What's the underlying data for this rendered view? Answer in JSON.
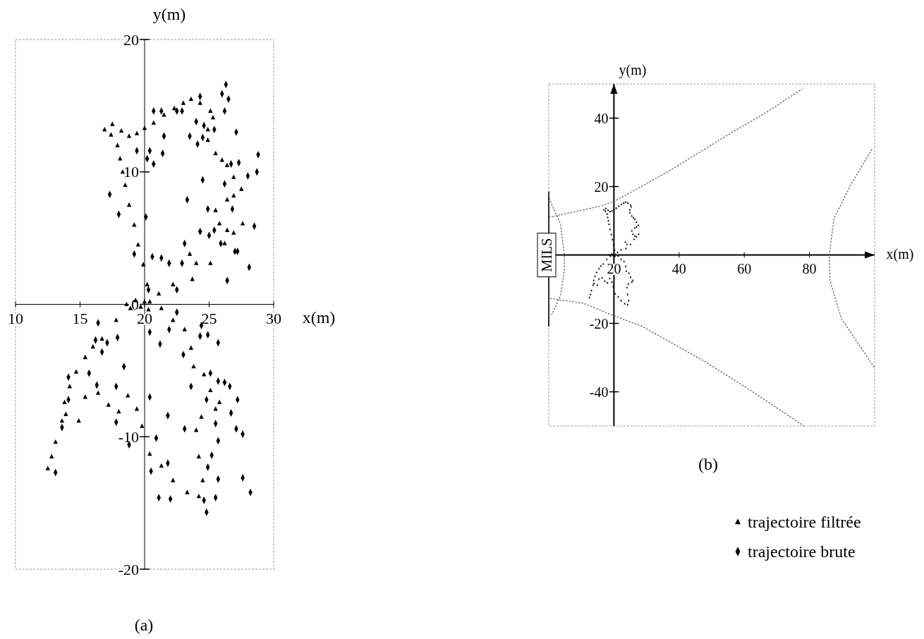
{
  "chart_data": [
    {
      "type": "scatter",
      "title": "(a)",
      "xlabel": "x(m)",
      "ylabel": "y(m)",
      "xlim": [
        10,
        30
      ],
      "ylim": [
        -20,
        20
      ],
      "xticks": [
        10,
        15,
        20,
        25,
        30
      ],
      "yticks": [
        20,
        10,
        0,
        -10,
        -20
      ],
      "grid": false,
      "legend": "right",
      "series": [
        {
          "name": "trajectoire filtrée",
          "color": "#000000",
          "marker": "triangle",
          "x": [
            20,
            20.2,
            19.9,
            19.5,
            19.2,
            18.8,
            18.5,
            18.3,
            18.1,
            17.9,
            17.4,
            16.9,
            17.5,
            18.2,
            18.8,
            19.4,
            20,
            20.7,
            21.5,
            22.3,
            23,
            23.6,
            24.3,
            25.1,
            25.3,
            24.9,
            24.9,
            25.5,
            26,
            26.4,
            26.9,
            27.5,
            26.9,
            26.4,
            25.5,
            25.8,
            26.4,
            26.9,
            27.6,
            26.2,
            25.1,
            24,
            23.5,
            23.7,
            22.2,
            21.1,
            20.4,
            18.6,
            18.9,
            19.3,
            19.7,
            20.3,
            17.8,
            16.7,
            16,
            15.4,
            14.7,
            14.2,
            13.8,
            13.6,
            13.1,
            12.8,
            12.5,
            13.9,
            14.9,
            15.4,
            16.4,
            17.2,
            18,
            18.7,
            19.4,
            19.8,
            20.4,
            21.3,
            22.2,
            23.3,
            24.2,
            24.5,
            24.2,
            24,
            24.4,
            25.5,
            25.8,
            25.1,
            24.6,
            23.8,
            23.6,
            23.1,
            22.2,
            21.3
          ],
          "values": [
            0.2,
            1.5,
            3,
            4.5,
            6,
            7.5,
            9,
            10,
            11,
            12,
            12.8,
            13.2,
            13.6,
            13.1,
            12.7,
            12.9,
            13.3,
            13.7,
            14.3,
            14.8,
            15.2,
            15.5,
            15.2,
            14.6,
            14.1,
            13.2,
            12.4,
            11.4,
            10.9,
            10.5,
            9.6,
            8.7,
            8.2,
            7.9,
            7.1,
            6.1,
            5.6,
            5.4,
            6.1,
            4.6,
            3.1,
            3.1,
            3.8,
            1.9,
            1.5,
            0.8,
            0.2,
            0,
            -0.3,
            0.3,
            -0.2,
            -0.4,
            -1.2,
            -2.6,
            -3.2,
            -4,
            -5.1,
            -6.2,
            -7.4,
            -8.8,
            -10.4,
            -11.5,
            -12.4,
            -8.3,
            -8.8,
            -7,
            -6.7,
            -7.6,
            -8.1,
            -6.9,
            -7.9,
            -9.2,
            -11.3,
            -12.2,
            -13.3,
            -14.2,
            -14.5,
            -13.3,
            -11.5,
            -9.5,
            -8.5,
            -7.9,
            -7.4,
            -6.5,
            -5.3,
            -4.7,
            -3.3,
            -1.9,
            -1.2,
            -0.3
          ]
        },
        {
          "name": "trajectoire brute",
          "color": "#000000",
          "marker": "diamond",
          "x": [
            26.3,
            26,
            26.5,
            24.3,
            26.2,
            20.7,
            21.3,
            22.5,
            22.9,
            24,
            24.6,
            25.4,
            27.1,
            23.5,
            24.5,
            24.1,
            21.5,
            19.4,
            20.4,
            21.4,
            20.2,
            20.7,
            28.8,
            27.3,
            26.7,
            28.7,
            28,
            24.5,
            26.2,
            17.3,
            23.3,
            18,
            20.1,
            24.9,
            26.8,
            28.5,
            24.3,
            25,
            25.4,
            23.1,
            25.9,
            27,
            27.2,
            19.2,
            20.6,
            21.3,
            21.9,
            22.9,
            28.1,
            26.4,
            20.3,
            22.5,
            16.4,
            20.4,
            17.9,
            22.5,
            21.9,
            24.4,
            24.9,
            24.3,
            25.7,
            21.2,
            17.1,
            16.2,
            16.7,
            23,
            18.4,
            15.7,
            25.1,
            14.1,
            17.8,
            16.3,
            23.6,
            25.7,
            26.2,
            26.6,
            20.4,
            27.2,
            24.8,
            26.7,
            21.8,
            17.8,
            25.5,
            23.1,
            27.1,
            27.6,
            20.9,
            18.8,
            25.7,
            25.2,
            24.9,
            21.8,
            20.5,
            13.1,
            25.7,
            27.6,
            28.2,
            21.1,
            22,
            25.5,
            24.6,
            24.8,
            14.1,
            13.6
          ],
          "values": [
            16.6,
            15.9,
            15.5,
            15.7,
            14.6,
            14.6,
            14.6,
            14.6,
            14.6,
            13.8,
            13.5,
            13.2,
            13,
            12.7,
            12.6,
            12.1,
            12.7,
            11.6,
            11.6,
            11.4,
            11,
            10.6,
            11.3,
            10.7,
            10.6,
            10,
            9.7,
            9.4,
            9.1,
            8.3,
            7.9,
            6.8,
            6.6,
            7.2,
            7.2,
            5.9,
            5.5,
            5.2,
            5.6,
            4.6,
            4.6,
            4,
            4,
            3.8,
            3.6,
            3.5,
            3.1,
            3.1,
            2.8,
            1.8,
            1.1,
            1.1,
            -1.4,
            -2.1,
            -2.5,
            -0.6,
            -1.9,
            -1.6,
            -2.3,
            -2.4,
            -2.9,
            -3,
            -2.9,
            -2.7,
            -3.6,
            -3.8,
            -4.7,
            -5.2,
            -5.2,
            -5.5,
            -6.2,
            -6.1,
            -6.2,
            -5.8,
            -5.9,
            -6.2,
            -7,
            -7.2,
            -7.2,
            -8.2,
            -8.4,
            -8.9,
            -9,
            -9.4,
            -9.4,
            -9.8,
            -10.1,
            -10.6,
            -10.3,
            -11.4,
            -12.3,
            -12,
            -12.6,
            -12.7,
            -13.2,
            -13.1,
            -14.2,
            -14.6,
            -14.7,
            -14.6,
            -14.8,
            -15.7,
            -7.2,
            -9.3
          ]
        }
      ]
    },
    {
      "type": "scatter",
      "title": "(b)",
      "xlabel": "x(m)",
      "ylabel": "y(m)",
      "xlim": [
        0,
        100
      ],
      "ylim": [
        -50,
        50
      ],
      "xticks": [
        20,
        40,
        60,
        80
      ],
      "yticks": [
        40,
        20,
        -20,
        -40
      ],
      "grid": false,
      "annotations": [
        {
          "text": "MILS",
          "x": 0,
          "y": 0
        }
      ],
      "series": [
        {
          "color": "#000000",
          "marker": "triangle",
          "x": [
            20,
            20.2,
            19.9,
            19.5,
            19.2,
            18.8,
            18.5,
            18.3,
            18.1,
            17.9,
            17.4,
            16.9,
            17.5,
            18.2,
            18.8,
            19.4,
            20,
            20.7,
            21.5,
            22.3,
            23,
            23.6,
            24.3,
            25.1,
            25.3,
            24.9,
            24.9,
            25.5,
            26,
            26.4,
            26.9,
            27.5,
            26.9,
            26.4,
            25.5,
            25.8,
            26.4,
            26.9,
            27.6,
            26.2,
            25.1,
            24,
            23.5,
            23.7,
            22.2,
            21.1,
            20.4,
            18.6,
            18.9,
            19.3,
            19.7,
            20.3,
            17.8,
            16.7,
            16,
            15.4,
            14.7,
            14.2,
            13.8,
            13.6,
            13.1,
            12.8,
            12.5,
            13.9,
            14.9,
            15.4,
            16.4,
            17.2,
            18,
            18.7,
            19.4,
            19.8,
            20.4,
            21.3,
            22.2,
            23.3,
            24.2,
            24.5,
            24.2,
            24,
            24.4,
            25.5,
            25.8,
            25.1,
            24.6,
            23.8,
            23.6,
            23.1,
            22.2,
            21.3
          ],
          "values": [
            0.2,
            1.5,
            3,
            4.5,
            6,
            7.5,
            9,
            10,
            11,
            12,
            12.8,
            13.2,
            13.6,
            13.1,
            12.7,
            12.9,
            13.3,
            13.7,
            14.3,
            14.8,
            15.2,
            15.5,
            15.2,
            14.6,
            14.1,
            13.2,
            12.4,
            11.4,
            10.9,
            10.5,
            9.6,
            8.7,
            8.2,
            7.9,
            7.1,
            6.1,
            5.6,
            5.4,
            6.1,
            4.6,
            3.1,
            3.1,
            3.8,
            1.9,
            1.5,
            0.8,
            0.2,
            0,
            -0.3,
            0.3,
            -0.2,
            -0.4,
            -1.2,
            -2.6,
            -3.2,
            -4,
            -5.1,
            -6.2,
            -7.4,
            -8.8,
            -10.4,
            -11.5,
            -12.4,
            -8.3,
            -8.8,
            -7,
            -6.7,
            -7.6,
            -8.1,
            -6.9,
            -7.9,
            -9.2,
            -11.3,
            -12.2,
            -13.3,
            -14.2,
            -14.5,
            -13.3,
            -11.5,
            -9.5,
            -8.5,
            -7.9,
            -7.4,
            -6.5,
            -5.3,
            -4.7,
            -3.3,
            -1.9,
            -1.2,
            -0.3
          ]
        },
        {
          "type": "line",
          "color": "#555555",
          "line_style": "dotted",
          "x": [
            0.1,
            16,
            19.9,
            24.6,
            37,
            57.2,
            66.5,
            77.7
          ],
          "values": [
            11,
            14.3,
            15.6,
            18,
            24.6,
            36.4,
            41.5,
            48.5
          ]
        },
        {
          "type": "line",
          "color": "#555555",
          "line_style": "dotted",
          "x": [
            0.5,
            10.6,
            19.1,
            28.5,
            47.8,
            61.8,
            78.2
          ],
          "values": [
            -12.7,
            -14.1,
            -17.4,
            -20.8,
            -31.1,
            -39.5,
            -49.9
          ]
        },
        {
          "type": "line",
          "color": "#555555",
          "line_style": "dotted",
          "x": [
            0.1,
            3.6,
            4.8,
            4.8,
            3.6,
            0.9
          ],
          "values": [
            16.5,
            9.1,
            0,
            -4.5,
            -11.9,
            -17.4
          ]
        },
        {
          "type": "line",
          "color": "#555555",
          "line_style": "dotted",
          "x": [
            99.1,
            92.9,
            87.5,
            86.1,
            86.3,
            89.8,
            99.9
          ],
          "values": [
            30.8,
            20.9,
            10.6,
            0,
            -7.5,
            -18.6,
            -32.9
          ]
        },
        {
          "type": "line",
          "color": "#000000",
          "line_style": "solid",
          "x": [
            0,
            0
          ],
          "values": [
            18.4,
            -20.8
          ]
        }
      ]
    }
  ]
}
